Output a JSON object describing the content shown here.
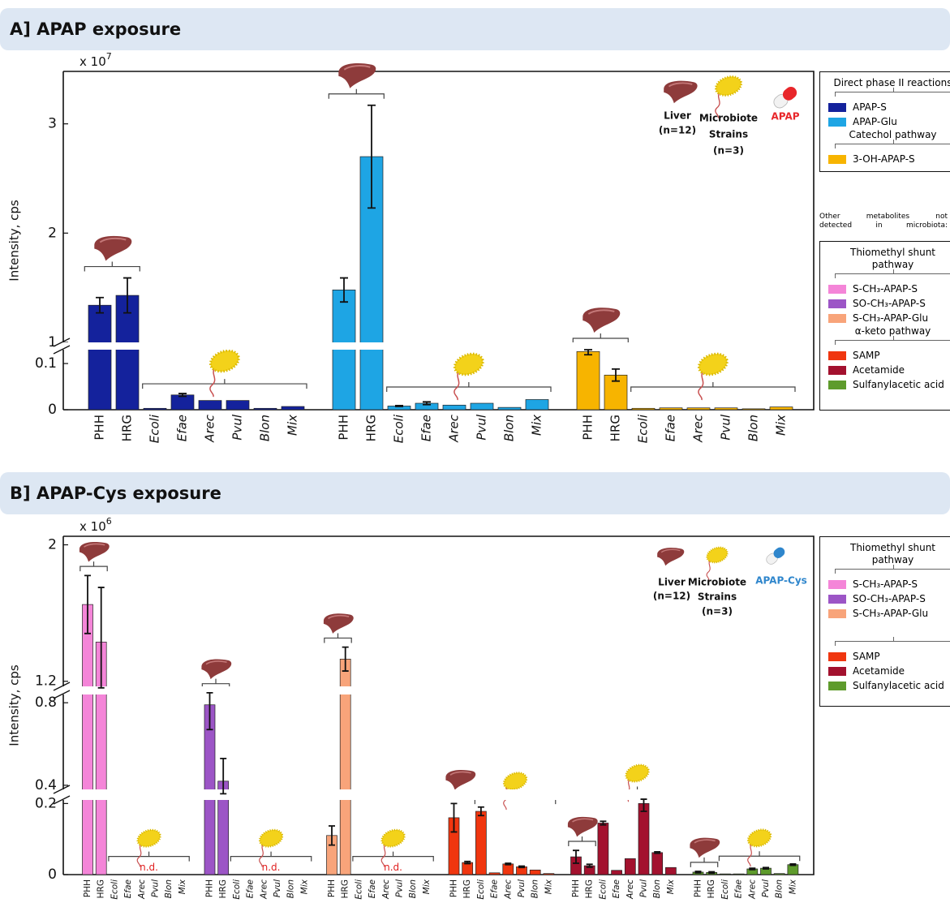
{
  "chart_data": [
    {
      "type": "bar",
      "title": "A] APAP exposure",
      "y_label": "Intensity, cps",
      "scale_label": {
        "base": "x 10",
        "exponent": "7"
      },
      "categories": [
        "PHH",
        "HRG",
        "Ecoli",
        "Efae",
        "Arec",
        "Pvul",
        "Blon",
        "Mix"
      ],
      "y_segments": [
        {
          "ylim": [
            0,
            0.13
          ],
          "yticks": [
            0,
            0.1
          ]
        },
        {
          "ylim": [
            1,
            3.48
          ],
          "yticks": [
            1,
            2,
            3
          ]
        }
      ],
      "series": [
        {
          "name": "APAP-S",
          "color": "#14229c",
          "pathway": "Direct phase II reactions",
          "values": [
            1.34,
            1.43,
            0.003,
            0.032,
            0.02,
            0.02,
            0.003,
            0.007
          ],
          "errors": [
            0.07,
            0.16,
            null,
            0.003,
            null,
            null,
            null,
            null
          ]
        },
        {
          "name": "APAP-Glu",
          "color": "#1ea5e4",
          "pathway": "Direct phase II reactions",
          "values": [
            1.48,
            2.7,
            0.008,
            0.014,
            0.01,
            0.014,
            0.005,
            0.022
          ],
          "errors": [
            0.11,
            0.47,
            0.001,
            0.003,
            null,
            null,
            null,
            null
          ]
        },
        {
          "name": "3-OH-APAP-S",
          "color": "#f7b400",
          "pathway": "Catechol pathway",
          "values": [
            0.126,
            0.075,
            0.003,
            0.004,
            0.004,
            0.004,
            0.002,
            0.006
          ],
          "errors": [
            0.007,
            0.013,
            null,
            null,
            null,
            null,
            null,
            null
          ]
        }
      ],
      "icon_legend": {
        "liver": [
          "Liver",
          "(n=12)"
        ],
        "microbiota": [
          "Microbiote",
          "Strains",
          "(n=3)"
        ],
        "exposure": {
          "label": "APAP",
          "color": "#e8262a"
        }
      },
      "other_metabolites": {
        "note": [
          "Other metabolites not",
          "detected in microbiota:"
        ],
        "groups": [
          {
            "heading": "Thiomethyl shunt pathway",
            "items": [
              {
                "name": "S-CH₃-APAP-S",
                "color": "#f485d8"
              },
              {
                "name": "SO-CH₃-APAP-S",
                "color": "#9c55c6"
              },
              {
                "name": "S-CH₃-APAP-Glu",
                "color": "#f8a47a"
              }
            ]
          },
          {
            "heading": "α-keto pathway",
            "items": [
              {
                "name": "SAMP",
                "color": "#f0360f"
              },
              {
                "name": "Acetamide",
                "color": "#a3112e"
              },
              {
                "name": "Sulfanylacetic acid",
                "color": "#5e9b2c"
              }
            ]
          }
        ]
      }
    },
    {
      "type": "bar",
      "title": "B] APAP-Cys exposure",
      "y_label": "Intensity, cps",
      "scale_label": {
        "base": "x 10",
        "exponent": "6"
      },
      "categories": [
        "PHH",
        "HRG",
        "Ecoli",
        "Efae",
        "Arec",
        "Pvul",
        "Blon",
        "Mix"
      ],
      "y_segments": [
        {
          "ylim": [
            0,
            0.21
          ],
          "yticks": [
            0,
            0.2
          ]
        },
        {
          "ylim": [
            0.38,
            0.84
          ],
          "yticks": [
            0.4,
            0.8
          ]
        },
        {
          "ylim": [
            1.17,
            2.05
          ],
          "yticks": [
            1.2,
            2
          ]
        }
      ],
      "series": [
        {
          "name": "S-CH₃-APAP-S",
          "color": "#f485d8",
          "pathway": "Thiomethyl shunt pathway",
          "annotation": "n.d.",
          "values": [
            1.65,
            1.43,
            null,
            null,
            null,
            null,
            null,
            null
          ],
          "errors": [
            0.17,
            0.32,
            null,
            null,
            null,
            null,
            null,
            null
          ]
        },
        {
          "name": "SO-CH₃-APAP-S",
          "color": "#9c55c6",
          "pathway": "Thiomethyl shunt pathway",
          "annotation": "n.d.",
          "values": [
            0.79,
            0.42,
            null,
            null,
            null,
            null,
            null,
            null
          ],
          "errors": [
            0.12,
            0.11,
            null,
            null,
            null,
            null,
            null,
            null
          ]
        },
        {
          "name": "S-CH₃-APAP-Glu",
          "color": "#f8a47a",
          "pathway": "Thiomethyl shunt pathway",
          "annotation": "n.d.",
          "values": [
            0.11,
            1.33,
            null,
            null,
            null,
            null,
            null,
            null
          ],
          "errors": [
            0.027,
            0.07,
            null,
            null,
            null,
            null,
            null,
            null
          ]
        },
        {
          "name": "SAMP",
          "color": "#f0360f",
          "pathway": null,
          "values": [
            0.16,
            0.034,
            0.178,
            0.005,
            0.03,
            0.022,
            0.013,
            0.003
          ],
          "errors": [
            0.04,
            0.003,
            0.012,
            null,
            0.002,
            0.002,
            null,
            null
          ]
        },
        {
          "name": "Acetamide",
          "color": "#a3112e",
          "pathway": null,
          "values": [
            0.05,
            0.025,
            0.145,
            0.012,
            0.045,
            0.2,
            0.062,
            0.02
          ],
          "errors": [
            0.018,
            0.004,
            0.005,
            null,
            null,
            0.022,
            0.002,
            null
          ]
        },
        {
          "name": "Sulfanylacetic acid",
          "color": "#5e9b2c",
          "pathway": null,
          "values": [
            0.007,
            0.006,
            0.002,
            0.002,
            0.016,
            0.018,
            0.003,
            0.028
          ],
          "errors": [
            0.002,
            0.002,
            null,
            null,
            0.002,
            0.002,
            null,
            0.002
          ]
        }
      ],
      "icon_legend": {
        "liver": [
          "Liver",
          "(n=12)"
        ],
        "microbiota": [
          "Microbiote",
          "Strains",
          "(n=3)"
        ],
        "exposure": {
          "label": "APAP-Cys",
          "color": "#2f86cc"
        }
      }
    }
  ]
}
